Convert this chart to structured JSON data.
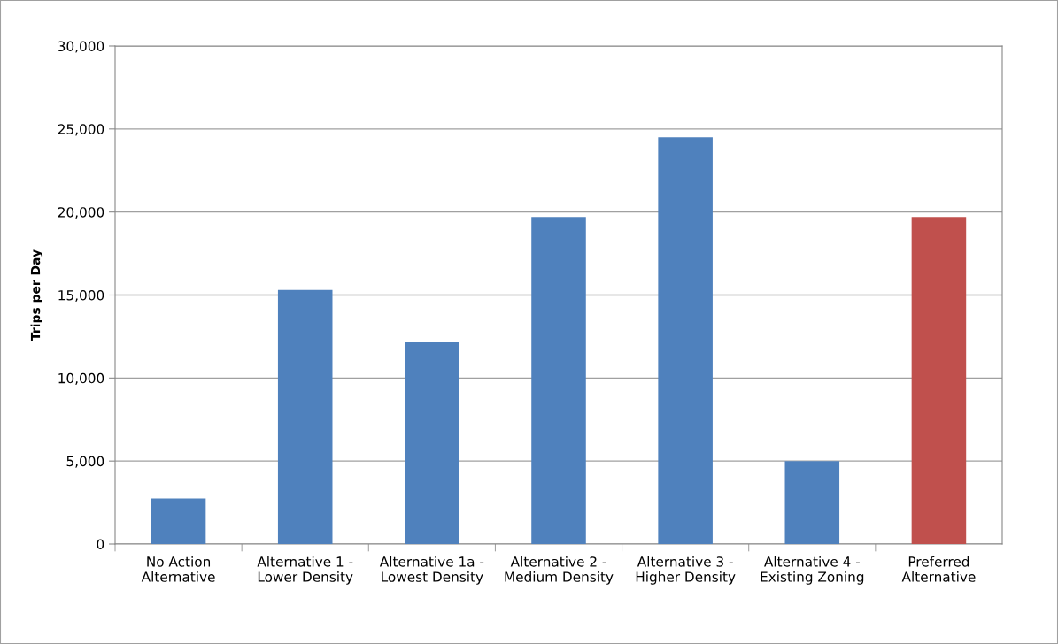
{
  "chart_data": {
    "type": "bar",
    "ylabel": "Trips per Day",
    "categories": [
      "No Action\nAlternative",
      "Alternative 1 -\nLower Density",
      "Alternative 1a -\nLowest Density",
      "Alternative 2 -\nMedium Density",
      "Alternative 3 -\nHigher Density",
      "Alternative 4 -\nExisting Zoning",
      "Preferred\nAlternative"
    ],
    "values": [
      2750,
      15300,
      12150,
      19700,
      24500,
      5000,
      19700
    ],
    "colors": [
      "#4f81bd",
      "#4f81bd",
      "#4f81bd",
      "#4f81bd",
      "#4f81bd",
      "#4f81bd",
      "#c0504d"
    ],
    "ylim": [
      0,
      30000
    ],
    "yticks": [
      0,
      {
        "value": 5000,
        "label": "5,000"
      },
      {
        "value": 10000,
        "label": "10,000"
      },
      {
        "value": 15000,
        "label": "15,000"
      },
      {
        "value": 20000,
        "label": "20,000"
      },
      {
        "value": 25000,
        "label": "25,000"
      },
      {
        "value": 30000,
        "label": "30,000"
      }
    ],
    "grid": "y"
  }
}
